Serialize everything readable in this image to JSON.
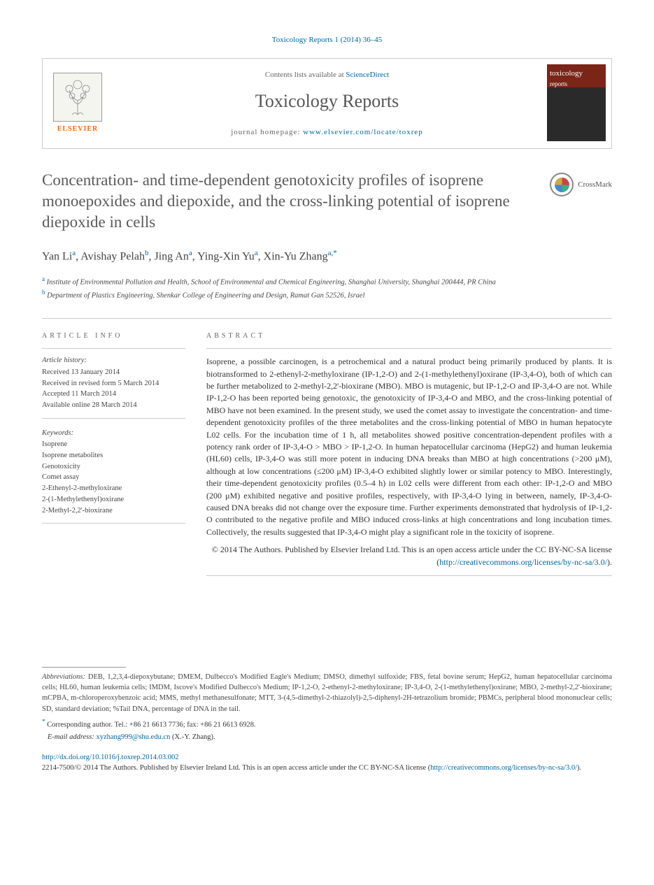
{
  "header": {
    "citation": "Toxicology Reports 1 (2014) 36–45",
    "contents_prefix": "Contents lists available at ",
    "sciencedirect": "ScienceDirect",
    "journal_name": "Toxicology Reports",
    "homepage_prefix": "journal homepage: ",
    "homepage_url": "www.elsevier.com/locate/toxrep",
    "publisher_label": "ELSEVIER",
    "cover_text_top": "toxicology",
    "cover_text_bottom": "reports"
  },
  "title": "Concentration- and time-dependent genotoxicity profiles of isoprene monoepoxides and diepoxide, and the cross-linking potential of isoprene diepoxide in cells",
  "crossmark_label": "CrossMark",
  "authors_html": "Yan Li<sup>a</sup>, Avishay Pelah<sup>b</sup>, Jing An<sup>a</sup>, Ying-Xin Yu<sup>a</sup>, Xin-Yu Zhang<sup>a,*</sup>",
  "affiliations": [
    {
      "sup": "a",
      "text": "Institute of Environmental Pollution and Health, School of Environmental and Chemical Engineering, Shanghai University, Shanghai 200444, PR China"
    },
    {
      "sup": "b",
      "text": "Department of Plastics Engineering, Shenkar College of Engineering and Design, Ramat Gan 52526, Israel"
    }
  ],
  "info": {
    "heading": "ARTICLE INFO",
    "history_label": "Article history:",
    "history": [
      "Received 13 January 2014",
      "Received in revised form 5 March 2014",
      "Accepted 11 March 2014",
      "Available online 28 March 2014"
    ],
    "keywords_label": "Keywords:",
    "keywords": [
      "Isoprene",
      "Isoprene metabolites",
      "Genotoxicity",
      "Comet assay",
      "2-Ethenyl-2-methyloxirane",
      "2-(1-Methylethenyl)oxirane",
      "2-Methyl-2,2'-bioxirane"
    ]
  },
  "abstract": {
    "heading": "ABSTRACT",
    "text": "Isoprene, a possible carcinogen, is a petrochemical and a natural product being primarily produced by plants. It is biotransformed to 2-ethenyl-2-methyloxirane (IP-1,2-O) and 2-(1-methylethenyl)oxirane (IP-3,4-O), both of which can be further metabolized to 2-methyl-2,2'-bioxirane (MBO). MBO is mutagenic, but IP-1,2-O and IP-3,4-O are not. While IP-1,2-O has been reported being genotoxic, the genotoxicity of IP-3,4-O and MBO, and the cross-linking potential of MBO have not been examined. In the present study, we used the comet assay to investigate the concentration- and time-dependent genotoxicity profiles of the three metabolites and the cross-linking potential of MBO in human hepatocyte L02 cells. For the incubation time of 1 h, all metabolites showed positive concentration-dependent profiles with a potency rank order of IP-3,4-O > MBO > IP-1,2-O. In human hepatocellular carcinoma (HepG2) and human leukemia (HL60) cells, IP-3,4-O was still more potent in inducing DNA breaks than MBO at high concentrations (>200 μM), although at low concentrations (≤200 μM) IP-3,4-O exhibited slightly lower or similar potency to MBO. Interestingly, their time-dependent genotoxicity profiles (0.5–4 h) in L02 cells were different from each other: IP-1,2-O and MBO (200 μM) exhibited negative and positive profiles, respectively, with IP-3,4-O lying in between, namely, IP-3,4-O-caused DNA breaks did not change over the exposure time. Further experiments demonstrated that hydrolysis of IP-1,2-O contributed to the negative profile and MBO induced cross-links at high concentrations and long incubation times. Collectively, the results suggested that IP-3,4-O might play a significant role in the toxicity of isoprene.",
    "copyright": "© 2014 The Authors. Published by Elsevier Ireland Ltd. This is an open access article under the CC BY-NC-SA license (",
    "license_url": "http://creativecommons.org/licenses/by-nc-sa/3.0/",
    "copyright_close": ")."
  },
  "footer": {
    "abbrev_label": "Abbreviations:",
    "abbrev_text": " DEB, 1,2,3,4-diepoxybutane; DMEM, Dulbecco's Modified Eagle's Medium; DMSO, dimethyl sulfoxide; FBS, fetal bovine serum; HepG2, human hepatocellular carcinoma cells; HL60, human leukemia cells; IMDM, Iscove's Modified Dulbecco's Medium; IP-1,2-O, 2-ethenyl-2-methyloxirane; IP-3,4-O, 2-(1-methylethenyl)oxirane; MBO, 2-methyl-2,2'-bioxirane; mCPBA, m-chloroperoxybenzoic acid; MMS, methyl methanesulfonate; MTT, 3-(4,5-dimethyl-2-thiazolyl)-2,5-diphenyl-2H-tetrazolium bromide; PBMCs, peripheral blood mononuclear cells; SD, standard deviation; %Tail DNA, percentage of DNA in the tail.",
    "corr_sup": "*",
    "corr_text": " Corresponding author. Tel.: +86 21 6613 7736; fax: +86 21 6613 6928.",
    "email_label": "E-mail address: ",
    "email": "xyzhang999@shu.edu.cn",
    "email_author": " (X.-Y. Zhang).",
    "doi_url": "http://dx.doi.org/10.1016/j.toxrep.2014.03.002",
    "issn_line_prefix": "2214-7500/© 2014 The Authors. Published by Elsevier Ireland Ltd. This is an open access article under the CC BY-NC-SA license (",
    "issn_license_url": "http://creativecommons.org/licenses/by-nc-sa/3.0/",
    "issn_line_suffix": ")."
  },
  "colors": {
    "link": "#0066a1",
    "orange": "#ff6600",
    "text": "#333333"
  }
}
